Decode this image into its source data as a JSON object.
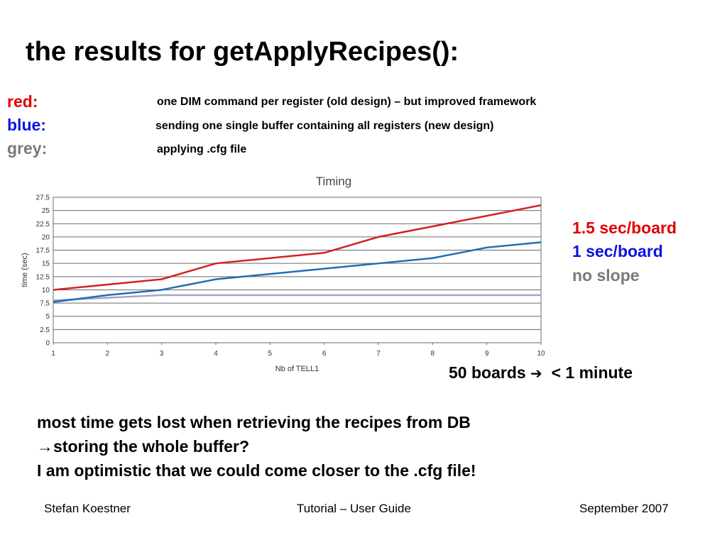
{
  "slide": {
    "title": "the results for getApplyRecipes():",
    "legend": [
      {
        "key": "red:",
        "description": "one DIM command per register (old design) – but improved framework",
        "color": "#e00000"
      },
      {
        "key": "blue:",
        "description": "sending one single buffer containing all registers (new design)",
        "color": "#0a14e0"
      },
      {
        "key": "grey:",
        "description": "applying .cfg file",
        "color": "#7a7a7a"
      }
    ],
    "side_notes": [
      {
        "text": "1.5 sec/board",
        "color": "#e00000"
      },
      {
        "text": "1 sec/board",
        "color": "#0a14e0"
      },
      {
        "text": "no slope",
        "color": "#7a7a7a"
      }
    ],
    "boards_note": {
      "lead": "50 boards",
      "arrow": "➔",
      "tail": " < 1 minute"
    },
    "conclusions": [
      "most time gets lost when retrieving the recipes from DB",
      "→storing the whole buffer?",
      "I am optimistic that we could come closer to the .cfg file!"
    ],
    "footer": {
      "left": "Stefan Koestner",
      "center": "Tutorial – User Guide",
      "right": "September 2007"
    }
  },
  "chart_data": {
    "type": "line",
    "title": "Timing",
    "xlabel": "Nb of TELL1",
    "ylabel": "time (sec)",
    "x": [
      1,
      2,
      3,
      4,
      5,
      6,
      7,
      8,
      9,
      10
    ],
    "xlim": [
      1,
      10
    ],
    "ylim": [
      0,
      27.5
    ],
    "yticks": [
      0,
      2.5,
      5,
      7.5,
      10,
      12.5,
      15,
      17.5,
      20,
      22.5,
      25,
      27.5
    ],
    "xticks": [
      1,
      2,
      3,
      4,
      5,
      6,
      7,
      8,
      9,
      10
    ],
    "grid": "horizontal",
    "series": [
      {
        "color": "#d42020",
        "values": [
          10,
          11,
          12,
          15,
          16,
          17,
          20,
          22,
          24,
          26
        ]
      },
      {
        "color": "#1f6db8",
        "values": [
          7.7,
          9,
          10,
          12,
          13,
          14,
          15,
          16,
          18,
          19
        ]
      },
      {
        "color": "#a4a4cc",
        "values": [
          8,
          8.5,
          9,
          9,
          9,
          9,
          9,
          9,
          9,
          9
        ]
      }
    ]
  }
}
